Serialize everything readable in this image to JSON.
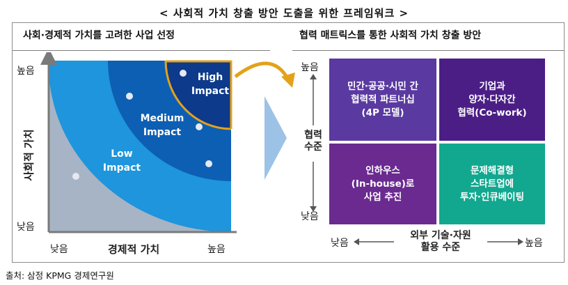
{
  "title": "< 사회적 가치 창출 방안 도출을 위한 프레임워크 >",
  "left_panel": {
    "heading": "사회·경제적 가치를 고려한 사업 선정",
    "y_axis_label": "사회적 가치",
    "y_high": "높음",
    "y_low": "낮음",
    "x_axis_label": "경제적 가치",
    "x_low": "낮음",
    "x_high": "높음",
    "zones": [
      {
        "line1": "High",
        "line2": "Impact"
      },
      {
        "line1": "Medium",
        "line2": "Impact"
      },
      {
        "line1": "Low",
        "line2": "Impact"
      }
    ]
  },
  "right_panel": {
    "heading": "협력 매트릭스를 통한 사회적 가치 창출 방안",
    "y_label_line1": "협력",
    "y_label_line2": "수준",
    "y_high": "높음",
    "y_low": "낮음",
    "x_label_line1": "외부 기술·자원",
    "x_label_line2": "활용 수준",
    "x_low": "낮음",
    "x_high": "높음",
    "cells": {
      "top_left": [
        "민간·공공·시민 간",
        "협력적 파트너십",
        "(4P 모델)"
      ],
      "top_right": [
        "기업과",
        "양자·다자간",
        "협력(Co-work)"
      ],
      "bottom_left": [
        "인하우스",
        "(In-house)로",
        "사업 추진"
      ],
      "bottom_right": [
        "문제해결형",
        "스타트업에",
        "투자·인큐베이팅"
      ]
    }
  },
  "colors": {
    "low": "#1e95dc",
    "medium": "#0d5fb4",
    "high": "#0d3a8a",
    "base": "#a7b4c5",
    "gold": "#e3a21a",
    "purple_top": "#5a3aa0",
    "purple_top_right": "#4b1e86",
    "purple_bottom": "#6a2a90",
    "teal": "#12a88f"
  },
  "source": "출처: 삼정 KPMG 경제연구원"
}
